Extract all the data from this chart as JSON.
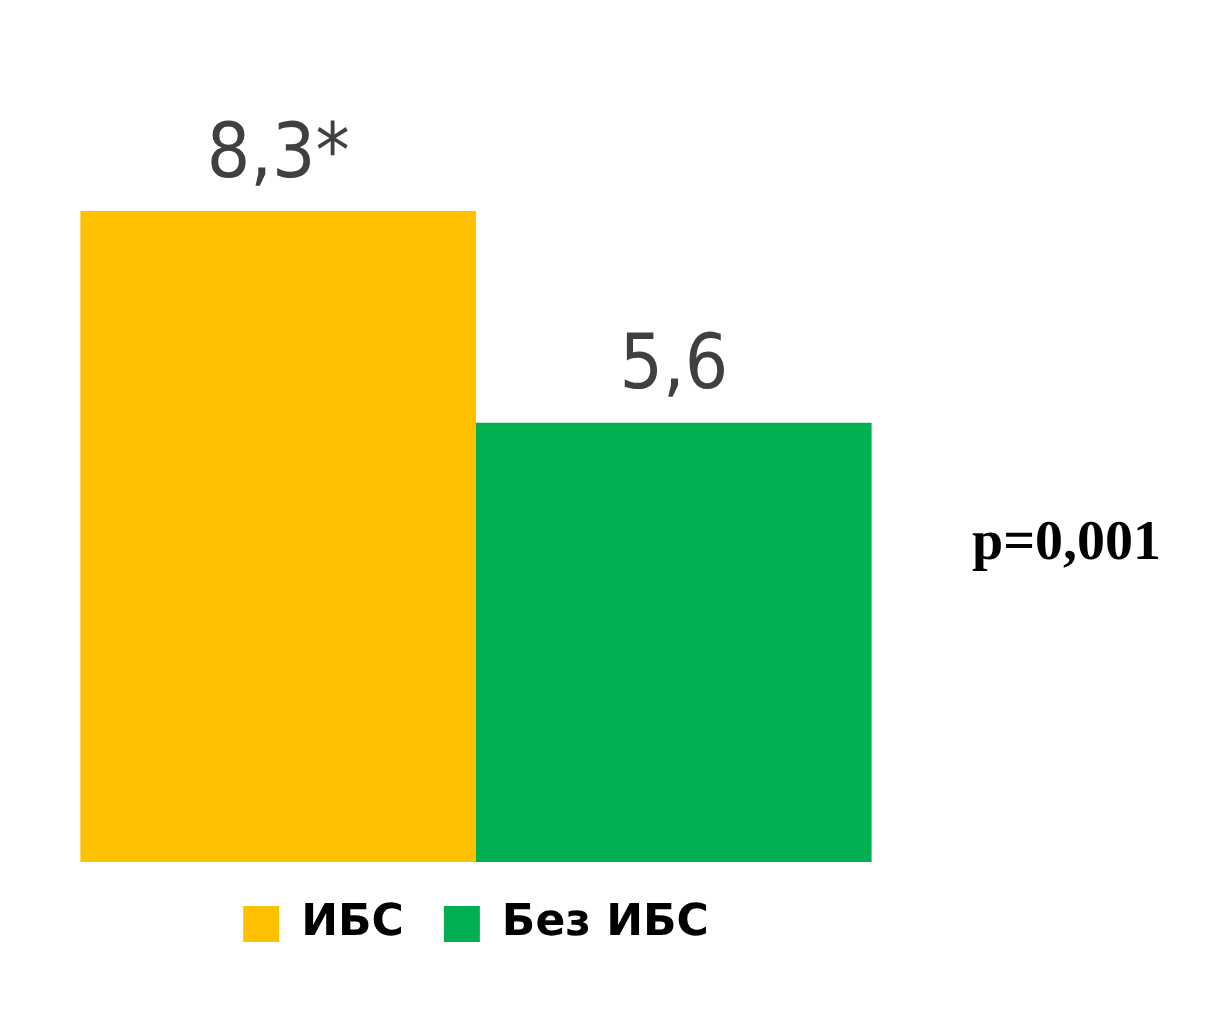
{
  "chart_data": {
    "type": "bar",
    "categories": [
      null
    ],
    "series": [
      {
        "name": "ИБС",
        "color": "#ffc000",
        "values": [
          8.3
        ],
        "value_labels": [
          "8,3*"
        ]
      },
      {
        "name": "Без ИБС",
        "color": "#00b050",
        "values": [
          5.6
        ],
        "value_labels": [
          "5,6"
        ]
      }
    ],
    "annotations": [
      "p=0,001"
    ],
    "legend": "bottom",
    "grid": false
  }
}
